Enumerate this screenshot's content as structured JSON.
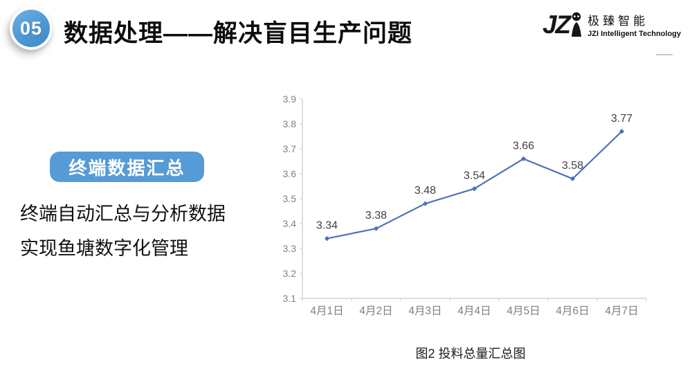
{
  "slide": {
    "badge_number": "05",
    "title": "数据处理——解决盲目生产问题"
  },
  "logo": {
    "mark": "JZ",
    "cn_name": "极臻智能",
    "en_name": "JZI Intelligent Technology"
  },
  "left_panel": {
    "tag": "终端数据汇总",
    "lines": [
      "终端自动汇总与分析数据",
      "实现鱼塘数字化管理"
    ]
  },
  "figure_caption": "图2 投料总量汇总图",
  "colors": {
    "accent_blue": "#569BD5",
    "line_blue": "#4A72B8",
    "tick_gray": "#7F7F7F",
    "axis_gray": "#C9C9C9",
    "value_label": "#3F3F3F"
  },
  "chart_data": {
    "type": "line",
    "categories": [
      "4月1日",
      "4月2日",
      "4月3日",
      "4月4日",
      "4月5日",
      "4月6日",
      "4月7日"
    ],
    "values": [
      3.34,
      3.38,
      3.48,
      3.54,
      3.66,
      3.58,
      3.77
    ],
    "title": "",
    "xlabel": "",
    "ylabel": "",
    "ylim": [
      3.1,
      3.9
    ],
    "ytick_step": 0.1,
    "grid": false,
    "legend_position": "none",
    "marker": "diamond",
    "data_labels": true
  }
}
